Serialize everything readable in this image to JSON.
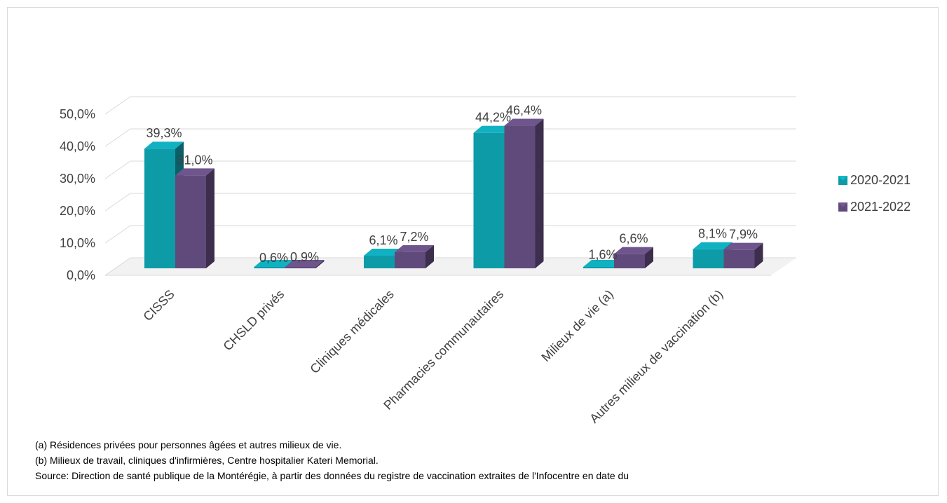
{
  "chart_data": {
    "type": "bar",
    "title": "",
    "xlabel": "",
    "ylabel": "",
    "ylim": [
      0,
      50
    ],
    "y_ticks": [
      "0,0%",
      "10,0%",
      "20,0%",
      "30,0%",
      "40,0%",
      "50,0%"
    ],
    "y_tick_values": [
      0,
      10,
      20,
      30,
      40,
      50
    ],
    "grid": true,
    "legend_position": "right",
    "categories": [
      "CISSS",
      "CHSLD privés",
      "Cliniques médicales",
      "Pharmacies communautaires",
      "Milieux de vie (a)",
      "Autres milieux de vaccination (b)"
    ],
    "series": [
      {
        "name": "2020-2021",
        "color": "#0e9ba8",
        "values": [
          39.3,
          0.6,
          6.1,
          44.2,
          1.6,
          8.1
        ],
        "labels": [
          "39,3%",
          "0,6%",
          "6,1%",
          "44,2%",
          "1,6%",
          "8,1%"
        ]
      },
      {
        "name": "2021-2022",
        "color": "#604a7b",
        "values": [
          31.0,
          0.9,
          7.2,
          46.4,
          6.6,
          7.9
        ],
        "labels": [
          "31,0%",
          "0,9%",
          "7,2%",
          "46,4%",
          "6,6%",
          "7,9%"
        ]
      }
    ]
  },
  "footnotes": {
    "note_a": "(a) Résidences privées pour personnes âgées et autres milieux de vie.",
    "note_b": "(b) Milieux de travail, cliniques d'infirmières, Centre hospitalier Kateri Memorial.",
    "source": "Source: Direction de santé publique de la Montérégie, à partir des données du registre de vaccination extraites de l'Infocentre en date du"
  }
}
